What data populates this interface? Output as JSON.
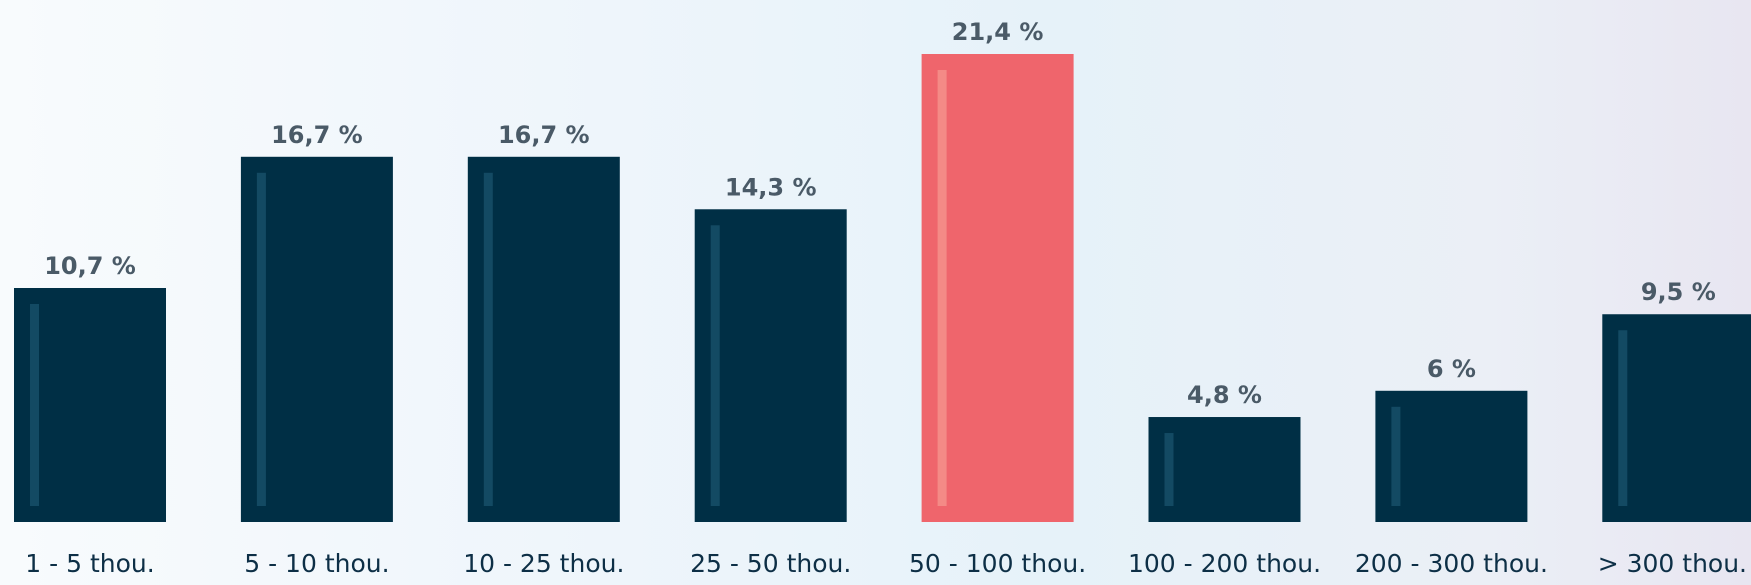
{
  "colors": {
    "bar": "#002f45",
    "bar_highlight_stripe": "#134a63",
    "highlight": "#ef656c",
    "highlight_stripe": "#f48a86",
    "value_label": "#4a5a67",
    "category_label": "#0d2f46"
  },
  "chart_data": {
    "type": "bar",
    "title": "",
    "xlabel": "",
    "ylabel": "",
    "categories": [
      "1 - 5 thou.",
      "5 - 10 thou.",
      "10 - 25 thou.",
      "25 - 50 thou.",
      "50 - 100 thou.",
      "100 - 200 thou.",
      "200 - 300 thou.",
      "> 300 thou."
    ],
    "values": [
      10.7,
      16.7,
      16.7,
      14.3,
      21.4,
      4.8,
      6,
      9.5
    ],
    "value_labels": [
      "10,7 %",
      "16,7 %",
      "16,7 %",
      "14,3 %",
      "21,4 %",
      "4,8 %",
      "6 %",
      "9,5 %"
    ],
    "highlighted_index": 4,
    "ylim": [
      0,
      21.4
    ],
    "grid": false,
    "legend": "none"
  }
}
